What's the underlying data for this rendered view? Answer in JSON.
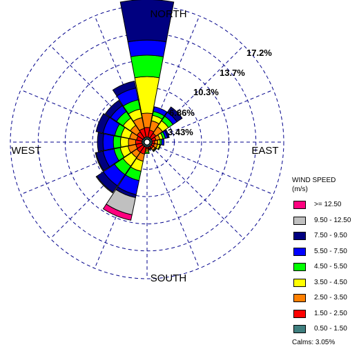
{
  "chart_data": {
    "type": "wind-rose",
    "directions": [
      "N",
      "NNE",
      "NE",
      "ENE",
      "E",
      "ESE",
      "SE",
      "SSE",
      "S",
      "SSW",
      "SW",
      "WSW",
      "W",
      "WNW",
      "NW",
      "NNW"
    ],
    "direction_labels": {
      "north": "NORTH",
      "east": "EAST",
      "south": "SOUTH",
      "west": "WEST"
    },
    "ring_labels": [
      "3.43%",
      "6.86%",
      "10.3%",
      "13.7%",
      "17.2%"
    ],
    "ring_values": [
      3.43,
      6.86,
      10.3,
      13.7,
      17.2
    ],
    "unit": "%",
    "legend": {
      "title": "WIND SPEED",
      "unit_label": "(m/s)",
      "calms": "Calms: 3.05%"
    },
    "bins": [
      {
        "label": "0.50 - 1.50",
        "color": "#3f7f7f"
      },
      {
        "label": "1.50 - 2.50",
        "color": "#ff0000"
      },
      {
        "label": "2.50 - 3.50",
        "color": "#ff8000"
      },
      {
        "label": "3.50 - 4.50",
        "color": "#ffff00"
      },
      {
        "label": "4.50 - 5.50",
        "color": "#00ff00"
      },
      {
        "label": "5.50 - 7.50",
        "color": "#0000ff"
      },
      {
        "label": "7.50 - 9.50",
        "color": "#000080"
      },
      {
        "label": "9.50 - 12.50",
        "color": "#c0c0c0"
      },
      {
        "label": ">= 12.50",
        "color": "#ff007f"
      }
    ],
    "cumulative_percent": {
      "N": [
        0.3,
        1.5,
        3.3,
        7.9,
        10.6,
        12.5,
        17.6,
        17.6,
        17.6
      ],
      "NNE": [
        0.3,
        1.2,
        2.4,
        3.1,
        3.6,
        4.2,
        4.2,
        4.2,
        4.2
      ],
      "NE": [
        0.3,
        1.0,
        2.0,
        2.9,
        3.6,
        4.2,
        5.0,
        5.0,
        5.0
      ],
      "ENE": [
        0.3,
        0.8,
        1.3,
        1.7,
        2.0,
        2.3,
        2.5,
        2.5,
        2.5
      ],
      "E": [
        0.3,
        0.6,
        1.0,
        1.3,
        1.5,
        1.8,
        1.8,
        1.8,
        1.8
      ],
      "ESE": [
        0.3,
        0.6,
        1.0,
        1.3,
        1.4,
        1.4,
        1.4,
        1.4,
        1.4
      ],
      "SE": [
        0.3,
        0.6,
        0.9,
        1.0,
        1.1,
        1.1,
        1.1,
        1.1,
        1.1
      ],
      "SSE": [
        0.3,
        0.5,
        0.6,
        0.7,
        0.7,
        0.7,
        0.7,
        0.7,
        0.7
      ],
      "S": [
        0.3,
        0.5,
        0.7,
        0.9,
        1.1,
        1.1,
        1.1,
        1.1,
        1.1
      ],
      "SSW": [
        0.3,
        1.2,
        2.1,
        3.4,
        4.6,
        6.4,
        6.8,
        9.0,
        9.7
      ],
      "SW": [
        0.3,
        1.2,
        2.0,
        3.3,
        4.6,
        6.3,
        7.3,
        7.4,
        7.4
      ],
      "WSW": [
        0.3,
        1.1,
        2.1,
        3.1,
        3.9,
        5.3,
        6.2,
        6.3,
        6.3
      ],
      "W": [
        0.3,
        1.1,
        2.0,
        3.0,
        3.9,
        5.2,
        5.9,
        5.9,
        5.9
      ],
      "WNW": [
        0.3,
        1.0,
        1.9,
        3.0,
        3.8,
        5.3,
        6.2,
        6.2,
        6.2
      ],
      "NW": [
        0.3,
        1.2,
        2.2,
        3.3,
        4.3,
        5.2,
        6.0,
        6.0,
        6.0
      ],
      "NNW": [
        0.3,
        1.4,
        2.8,
        3.9,
        5.1,
        6.6,
        7.5,
        7.5,
        7.5
      ]
    }
  }
}
